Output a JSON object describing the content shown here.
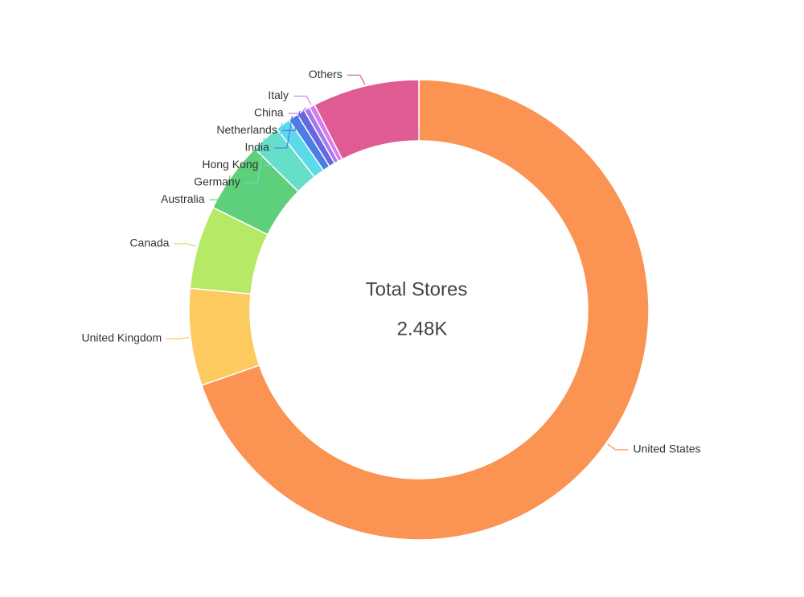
{
  "chart_data": {
    "type": "donut",
    "center_title": "Total Stores",
    "center_value": "2.48K",
    "categories": [
      "United States",
      "United Kingdom",
      "Canada",
      "Australia",
      "Germany",
      "Hong Kong",
      "India",
      "Netherlands",
      "China",
      "Italy",
      "Others"
    ],
    "values": [
      1728,
      169,
      145,
      124,
      51,
      26,
      17,
      14,
      10,
      10,
      186
    ],
    "colors": [
      "#fb9353",
      "#fdca5f",
      "#b6ea66",
      "#5ecf7a",
      "#66dfc8",
      "#5dd9ec",
      "#4b7de8",
      "#6666e0",
      "#a57aef",
      "#d97ef0",
      "#e05a93"
    ]
  }
}
